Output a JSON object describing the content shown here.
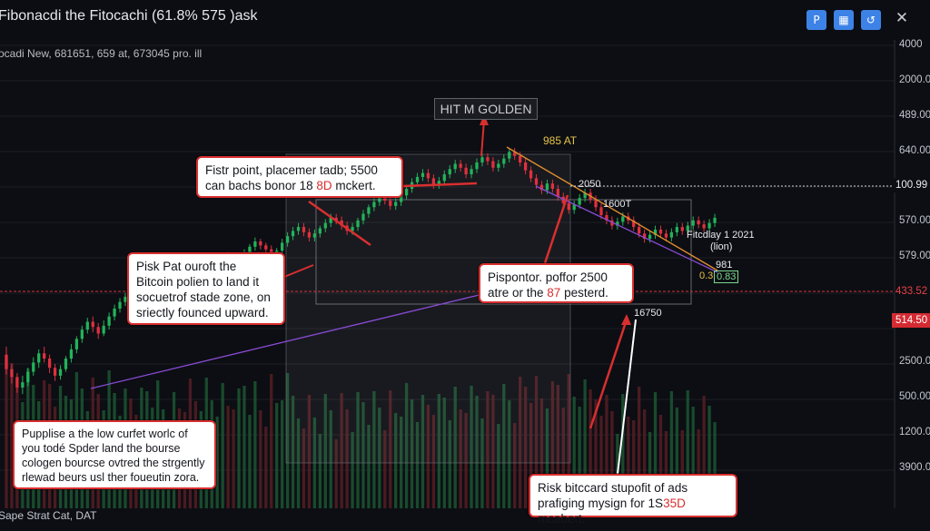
{
  "window": {
    "title": "Fibonacdi the Fitocachi (61.8% 575 )ask",
    "subtitle": "ocadi New, 681651, 659 at, 673045 pro. ill",
    "footer": "Sape Strat Cat, DAT"
  },
  "toolbar": {
    "buttons": [
      {
        "icon": "pen-icon",
        "glyph": "P"
      },
      {
        "icon": "chart-grid-icon",
        "glyph": "▦"
      },
      {
        "icon": "refresh-icon",
        "glyph": "↺"
      }
    ],
    "close_glyph": "✕"
  },
  "colors": {
    "background": "#0c0e13",
    "bull": "#22b35a",
    "bear": "#e0303f",
    "callout_border": "#d92f2f",
    "trend_purple": "#8a4bd6",
    "fib_orange": "#e08c2e",
    "level_line": "#d43036"
  },
  "chart_data": {
    "type": "candlestick",
    "title": "",
    "xlabel": "",
    "ylabel": "",
    "y_axis_labels": [
      "4000",
      "2000.00",
      "489.00",
      "640.00",
      "100.99",
      "570.00",
      "579.00",
      "433.52",
      "514.50",
      "2500.00",
      "500.00",
      "1200.00",
      "3900.00"
    ],
    "y_axis_highlights": [
      {
        "label": "100.99",
        "style": "white"
      },
      {
        "label": "433.52",
        "style": "red"
      },
      {
        "label": "514.50",
        "style": "red"
      }
    ],
    "candles": [
      [
        74,
        63,
        80,
        59
      ],
      [
        63,
        57,
        67,
        52
      ],
      [
        57,
        49,
        60,
        45
      ],
      [
        49,
        53,
        58,
        44
      ],
      [
        53,
        61,
        64,
        50
      ],
      [
        61,
        68,
        72,
        58
      ],
      [
        68,
        75,
        78,
        64
      ],
      [
        75,
        71,
        80,
        68
      ],
      [
        71,
        64,
        74,
        60
      ],
      [
        64,
        58,
        67,
        54
      ],
      [
        58,
        63,
        66,
        55
      ],
      [
        63,
        71,
        73,
        61
      ],
      [
        71,
        78,
        82,
        68
      ],
      [
        78,
        86,
        88,
        75
      ],
      [
        86,
        93,
        96,
        83
      ],
      [
        93,
        99,
        102,
        90
      ],
      [
        99,
        95,
        103,
        91
      ],
      [
        95,
        90,
        98,
        86
      ],
      [
        90,
        96,
        100,
        88
      ],
      [
        96,
        103,
        106,
        93
      ],
      [
        103,
        109,
        112,
        100
      ],
      [
        109,
        114,
        117,
        106
      ],
      [
        114,
        118,
        121,
        111
      ],
      [
        118,
        113,
        121,
        110
      ],
      [
        113,
        108,
        116,
        105
      ],
      [
        108,
        112,
        115,
        105
      ],
      [
        112,
        118,
        121,
        109
      ],
      [
        118,
        124,
        127,
        115
      ],
      [
        124,
        130,
        132,
        121
      ],
      [
        130,
        133,
        136,
        127
      ],
      [
        133,
        136,
        139,
        130
      ],
      [
        136,
        140,
        142,
        133
      ],
      [
        140,
        137,
        143,
        134
      ],
      [
        137,
        132,
        140,
        129
      ],
      [
        132,
        127,
        135,
        124
      ],
      [
        127,
        123,
        130,
        120
      ],
      [
        123,
        128,
        131,
        120
      ],
      [
        128,
        134,
        136,
        125
      ],
      [
        134,
        139,
        141,
        131
      ],
      [
        139,
        144,
        146,
        136
      ],
      [
        144,
        149,
        151,
        141
      ],
      [
        149,
        146,
        152,
        143
      ],
      [
        146,
        141,
        149,
        138
      ],
      [
        141,
        145,
        147,
        138
      ],
      [
        145,
        151,
        154,
        142
      ],
      [
        151,
        156,
        158,
        148
      ],
      [
        156,
        160,
        163,
        153
      ],
      [
        160,
        157,
        162,
        154
      ],
      [
        157,
        154,
        159,
        151
      ],
      [
        154,
        149,
        157,
        146
      ],
      [
        149,
        153,
        155,
        146
      ],
      [
        153,
        159,
        162,
        150
      ],
      [
        159,
        164,
        167,
        156
      ],
      [
        164,
        168,
        171,
        161
      ],
      [
        168,
        171,
        174,
        165
      ],
      [
        171,
        167,
        174,
        164
      ],
      [
        167,
        163,
        170,
        160
      ],
      [
        163,
        166,
        169,
        160
      ],
      [
        166,
        170,
        172,
        163
      ],
      [
        170,
        174,
        177,
        167
      ],
      [
        174,
        178,
        181,
        171
      ],
      [
        178,
        176,
        181,
        173
      ],
      [
        176,
        172,
        179,
        169
      ],
      [
        172,
        168,
        175,
        165
      ],
      [
        168,
        171,
        174,
        165
      ],
      [
        171,
        176,
        178,
        168
      ],
      [
        176,
        181,
        184,
        173
      ],
      [
        181,
        186,
        188,
        178
      ],
      [
        186,
        190,
        193,
        183
      ],
      [
        190,
        194,
        197,
        187
      ],
      [
        194,
        191,
        197,
        188
      ],
      [
        191,
        187,
        194,
        184
      ],
      [
        187,
        190,
        193,
        184
      ],
      [
        190,
        195,
        198,
        187
      ],
      [
        195,
        200,
        203,
        192
      ],
      [
        200,
        205,
        208,
        197
      ],
      [
        205,
        209,
        212,
        202
      ],
      [
        209,
        212,
        215,
        206
      ],
      [
        212,
        208,
        215,
        205
      ],
      [
        208,
        203,
        211,
        200
      ],
      [
        203,
        206,
        209,
        200
      ],
      [
        206,
        211,
        214,
        203
      ],
      [
        211,
        215,
        218,
        208
      ],
      [
        215,
        219,
        222,
        212
      ],
      [
        219,
        216,
        222,
        213
      ],
      [
        216,
        211,
        219,
        208
      ],
      [
        211,
        215,
        218,
        208
      ],
      [
        215,
        220,
        223,
        212
      ],
      [
        220,
        224,
        227,
        217
      ],
      [
        224,
        221,
        227,
        218
      ],
      [
        221,
        216,
        224,
        213
      ],
      [
        216,
        219,
        222,
        213
      ],
      [
        219,
        223,
        226,
        216
      ],
      [
        223,
        228,
        230,
        220
      ],
      [
        228,
        225,
        231,
        222
      ],
      [
        225,
        220,
        228,
        217
      ],
      [
        220,
        214,
        223,
        211
      ],
      [
        214,
        208,
        217,
        205
      ],
      [
        208,
        203,
        211,
        200
      ],
      [
        203,
        199,
        206,
        196
      ],
      [
        199,
        204,
        207,
        196
      ],
      [
        204,
        200,
        207,
        197
      ],
      [
        200,
        194,
        203,
        191
      ],
      [
        194,
        189,
        197,
        186
      ],
      [
        189,
        184,
        192,
        181
      ],
      [
        184,
        188,
        191,
        181
      ],
      [
        188,
        193,
        196,
        185
      ],
      [
        193,
        197,
        200,
        190
      ],
      [
        197,
        192,
        200,
        189
      ],
      [
        192,
        186,
        195,
        183
      ],
      [
        186,
        180,
        189,
        177
      ],
      [
        180,
        176,
        183,
        173
      ],
      [
        176,
        172,
        179,
        169
      ],
      [
        172,
        175,
        178,
        169
      ],
      [
        175,
        179,
        182,
        172
      ],
      [
        179,
        176,
        182,
        173
      ],
      [
        176,
        171,
        179,
        168
      ],
      [
        171,
        166,
        174,
        163
      ],
      [
        166,
        162,
        169,
        159
      ],
      [
        162,
        165,
        168,
        159
      ],
      [
        165,
        169,
        172,
        162
      ],
      [
        169,
        166,
        172,
        163
      ],
      [
        166,
        163,
        169,
        160
      ],
      [
        163,
        167,
        170,
        160
      ],
      [
        167,
        171,
        174,
        164
      ],
      [
        171,
        168,
        174,
        165
      ],
      [
        168,
        172,
        175,
        165
      ],
      [
        172,
        176,
        179,
        169
      ],
      [
        176,
        173,
        179,
        170
      ],
      [
        173,
        170,
        176,
        167
      ],
      [
        170,
        174,
        177,
        167
      ],
      [
        174,
        178,
        181,
        171
      ]
    ]
  },
  "annotations": {
    "golden_box": "HIT M GOLDEN",
    "fib_label_top": "985 AT",
    "price_2050": "2050",
    "price_1600": "1600T",
    "fib_right_1": "Fitcdlay 1 2021",
    "fib_right_2": "(lion)",
    "fib_right_3": "981",
    "fib_right_4": "0.3",
    "fib_right_5": "0.83",
    "low_label": "16750"
  },
  "callouts": [
    {
      "id": "first-point",
      "pre": "Fistr point, placemer tadb; 5500 can bachs bonor 18 ",
      "hl": "8D",
      "post": " mckert."
    },
    {
      "id": "risk-bitcoin",
      "pre": "Pisk Pat ouroft the Bitcoin polien to land it socuetrof stade zone, on sriectly founced upward.",
      "hl": "",
      "post": ""
    },
    {
      "id": "pispontor",
      "pre": "Pispontor. poffor 2500 atre or the ",
      "hl": "87",
      "post": " pesterd."
    },
    {
      "id": "pupplise",
      "pre": "Pupplise a the low curfet worlc of you todé Spder land the bourse cologen bourcse ovtred the strgently rlewad beurs usl ther foueutin zora.",
      "hl": "",
      "post": ""
    },
    {
      "id": "risk-bitccard",
      "pre": "Risk bitccard stupofit of ads prafiging mysign for 1S",
      "hl": "35D",
      "post": " mcabert."
    }
  ]
}
